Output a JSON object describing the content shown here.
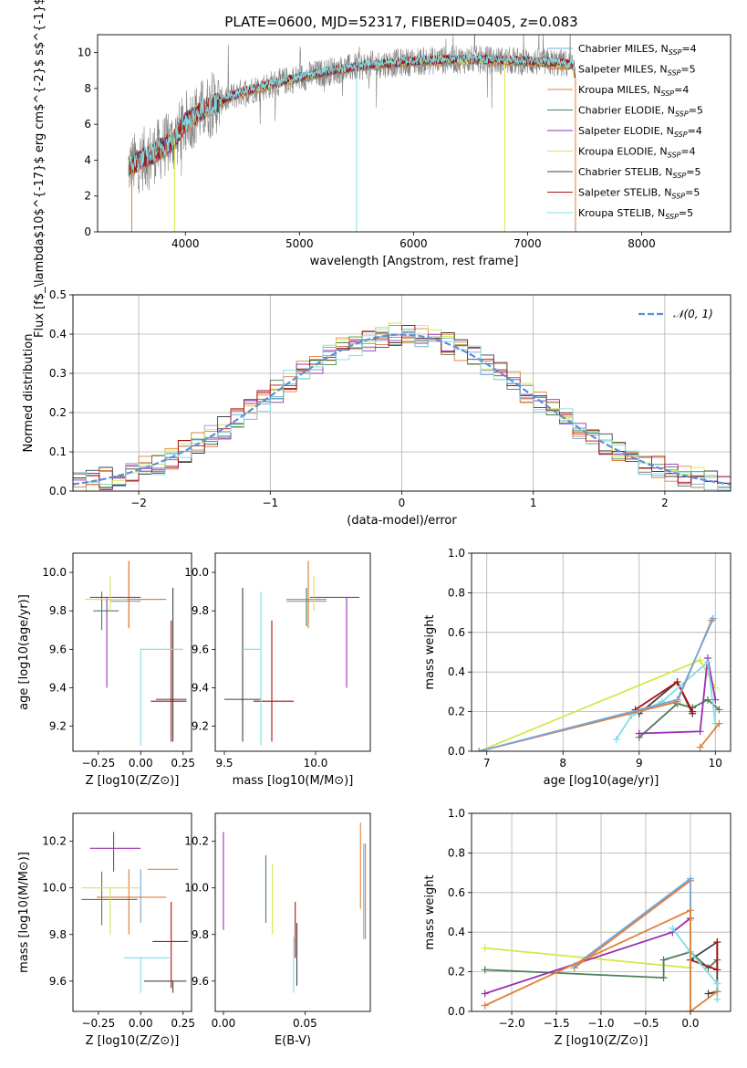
{
  "figure": {
    "title": "PLATE=0600, MJD=52317, FIBERID=0405, z=0.083"
  },
  "colors": {
    "Chabrier MILES": "#6fa8dc",
    "Salpeter MILES": "#e07b39",
    "Kroupa MILES": "#e0823a",
    "Chabrier ELODIE": "#4d7f58",
    "Salpeter ELODIE": "#9a2fb0",
    "Kroupa ELODIE": "#d4e84a",
    "Chabrier STELIB": "#404040",
    "Salpeter STELIB": "#b01010",
    "Kroupa STELIB": "#7fdde6",
    "data": "#808080",
    "normal": "#5b8fd9"
  },
  "chart_data": [
    {
      "id": "spectrum",
      "type": "line",
      "xlabel": "wavelength [Angstrom, rest frame]",
      "ylabel": "Flux [f$_\\lambda$10$^{-17}$ erg cm$^{-2}$ s$^{-1}$ A$^{-1}$]",
      "xlim": [
        3230,
        8780
      ],
      "ylim": [
        0,
        11
      ],
      "xticks": [
        4000,
        5000,
        6000,
        7000,
        8000
      ],
      "yticks": [
        0,
        2,
        4,
        6,
        8,
        10
      ],
      "legend_position": "top-right",
      "series": [
        {
          "name": "Chabrier MILES, N_SSP=4",
          "label_main": "Chabrier MILES, N",
          "label_sub": "SSP",
          "label_tail": "=4"
        },
        {
          "name": "Salpeter MILES, N_SSP=5",
          "label_main": "Salpeter MILES, N",
          "label_sub": "SSP",
          "label_tail": "=5"
        },
        {
          "name": "Kroupa MILES, N_SSP=4",
          "label_main": "Kroupa MILES, N",
          "label_sub": "SSP",
          "label_tail": "=4"
        },
        {
          "name": "Chabrier ELODIE, N_SSP=5",
          "label_main": "Chabrier ELODIE, N",
          "label_sub": "SSP",
          "label_tail": "=5"
        },
        {
          "name": "Salpeter ELODIE, N_SSP=4",
          "label_main": "Salpeter ELODIE, N",
          "label_sub": "SSP",
          "label_tail": "=4"
        },
        {
          "name": "Kroupa ELODIE, N_SSP=4",
          "label_main": "Kroupa ELODIE, N",
          "label_sub": "SSP",
          "label_tail": "=4"
        },
        {
          "name": "Chabrier STELIB, N_SSP=5",
          "label_main": "Chabrier STELIB, N",
          "label_sub": "SSP",
          "label_tail": "=5"
        },
        {
          "name": "Salpeter STELIB, N_SSP=5",
          "label_main": "Salpeter STELIB, N",
          "label_sub": "SSP",
          "label_tail": "=5"
        },
        {
          "name": "Kroupa STELIB, N_SSP=5",
          "label_main": "Kroupa STELIB, N",
          "label_sub": "SSP",
          "label_tail": "=5"
        }
      ],
      "continuum": {
        "x": [
          3500,
          3700,
          3900,
          4000,
          4200,
          4500,
          4800,
          5000,
          5300,
          5600,
          6000,
          6300,
          6600,
          7000,
          7300,
          7400,
          7420
        ],
        "y": [
          3.6,
          4.3,
          5.1,
          6.1,
          7.0,
          7.8,
          8.3,
          8.6,
          9.0,
          9.3,
          9.5,
          9.6,
          9.6,
          9.5,
          9.4,
          9.3,
          8.5
        ]
      }
    },
    {
      "id": "residuals",
      "type": "line",
      "xlabel": "(data-model)/error",
      "ylabel": "Normed distribution",
      "xlim": [
        -2.5,
        2.5
      ],
      "ylim": [
        0,
        0.5
      ],
      "xticks": [
        -2,
        -1,
        0,
        1,
        2
      ],
      "yticks": [
        0.0,
        0.1,
        0.2,
        0.3,
        0.4,
        0.5
      ],
      "grid": true,
      "legend_position": "top-right",
      "normal_label": "𝒩(0, 1)"
    },
    {
      "id": "age_vs_Z",
      "type": "scatter",
      "xlabel": "Z [log10(Z/Z⊙)]",
      "ylabel": "age  [log10(age/yr)]",
      "xlim": [
        -0.4,
        0.3
      ],
      "ylim": [
        9.07,
        10.1
      ],
      "xticks": [
        -0.25,
        0.0,
        0.25
      ],
      "yticks": [
        9.2,
        9.4,
        9.6,
        9.8,
        10.0
      ],
      "points": [
        {
          "series": "Chabrier MILES",
          "x": 0.0,
          "y": 9.85,
          "xerr": [
            0.18,
            0.0
          ],
          "yerr": [
            0.0,
            0.0
          ]
        },
        {
          "series": "Salpeter MILES",
          "x": -0.07,
          "y": 9.86,
          "xerr": [
            0.19,
            0.22
          ],
          "yerr": [
            0.15,
            0.2
          ]
        },
        {
          "series": "Kroupa MILES",
          "x": -0.07,
          "y": 9.86,
          "xerr": [
            0.19,
            0.22
          ],
          "yerr": [
            0.15,
            0.2
          ]
        },
        {
          "series": "Chabrier ELODIE",
          "x": -0.23,
          "y": 9.8,
          "xerr": [
            0.05,
            0.1
          ],
          "yerr": [
            0.1,
            0.1
          ]
        },
        {
          "series": "Salpeter ELODIE",
          "x": -0.2,
          "y": 9.87,
          "xerr": [
            0.1,
            0.2
          ],
          "yerr": [
            0.47,
            0.0
          ]
        },
        {
          "series": "Kroupa ELODIE",
          "x": -0.18,
          "y": 9.86,
          "xerr": [
            0.15,
            0.1
          ],
          "yerr": [
            0.06,
            0.12
          ]
        },
        {
          "series": "Chabrier STELIB",
          "x": 0.19,
          "y": 9.34,
          "xerr": [
            0.1,
            0.08
          ],
          "yerr": [
            0.22,
            0.58
          ]
        },
        {
          "series": "Salpeter STELIB",
          "x": 0.18,
          "y": 9.33,
          "xerr": [
            0.12,
            0.09
          ],
          "yerr": [
            0.21,
            0.42
          ]
        },
        {
          "series": "Kroupa STELIB",
          "x": 0.0,
          "y": 9.6,
          "xerr": [
            0.0,
            0.25
          ],
          "yerr": [
            0.5,
            0.0
          ]
        }
      ]
    },
    {
      "id": "age_vs_mass",
      "type": "scatter",
      "xlabel": "mass [log10(M/M⊙)]",
      "ylabel": "",
      "xlim": [
        9.45,
        10.3
      ],
      "ylim": [
        9.07,
        10.1
      ],
      "xticks": [
        9.5,
        10.0
      ],
      "yticks": [
        9.2,
        9.4,
        9.6,
        9.8,
        10.0
      ],
      "points": [
        {
          "series": "Chabrier MILES",
          "x": 9.96,
          "y": 9.85,
          "xerr": [
            0.12,
            0.1
          ],
          "yerr": [
            0.0,
            0.0
          ]
        },
        {
          "series": "Salpeter MILES",
          "x": 9.96,
          "y": 9.86,
          "xerr": [
            0.12,
            0.1
          ],
          "yerr": [
            0.15,
            0.2
          ]
        },
        {
          "series": "Kroupa MILES",
          "x": 9.96,
          "y": 9.86,
          "xerr": [
            0.12,
            0.1
          ],
          "yerr": [
            0.15,
            0.2
          ]
        },
        {
          "series": "Chabrier ELODIE",
          "x": 9.95,
          "y": 9.82,
          "xerr": [
            0.0,
            0.0
          ],
          "yerr": [
            0.1,
            0.1
          ]
        },
        {
          "series": "Salpeter ELODIE",
          "x": 10.17,
          "y": 9.87,
          "xerr": [
            0.2,
            0.07
          ],
          "yerr": [
            0.47,
            0.0
          ]
        },
        {
          "series": "Kroupa ELODIE",
          "x": 9.99,
          "y": 9.86,
          "xerr": [
            0.0,
            0.0
          ],
          "yerr": [
            0.06,
            0.12
          ]
        },
        {
          "series": "Chabrier STELIB",
          "x": 9.6,
          "y": 9.34,
          "xerr": [
            0.1,
            0.1
          ],
          "yerr": [
            0.22,
            0.58
          ]
        },
        {
          "series": "Salpeter STELIB",
          "x": 9.76,
          "y": 9.33,
          "xerr": [
            0.1,
            0.12
          ],
          "yerr": [
            0.21,
            0.42
          ]
        },
        {
          "series": "Kroupa STELIB",
          "x": 9.7,
          "y": 9.6,
          "xerr": [
            0.1,
            0.0
          ],
          "yerr": [
            0.5,
            0.3
          ]
        }
      ]
    },
    {
      "id": "mass_weight_vs_age",
      "type": "line",
      "xlabel": "age  [log10(age/yr)]",
      "ylabel": "mass weight",
      "xlim": [
        6.8,
        10.2
      ],
      "ylim": [
        0,
        1
      ],
      "xticks": [
        7,
        8,
        9,
        10
      ],
      "yticks": [
        0.0,
        0.2,
        0.4,
        0.6,
        0.8,
        1.0
      ],
      "grid": true,
      "series": [
        {
          "series": "Kroupa ELODIE",
          "x": [
            6.9,
            9.8,
            10.0
          ],
          "y": [
            0.0,
            0.46,
            0.32
          ]
        },
        {
          "series": "Chabrier ELODIE",
          "x": [
            9.0,
            9.5,
            9.7,
            9.9,
            10.05
          ],
          "y": [
            0.07,
            0.24,
            0.22,
            0.26,
            0.21
          ]
        },
        {
          "series": "Chabrier STELIB",
          "x": [
            9.0,
            9.5,
            9.7
          ],
          "y": [
            0.19,
            0.35,
            0.19
          ]
        },
        {
          "series": "Salpeter STELIB",
          "x": [
            8.95,
            9.5,
            9.7
          ],
          "y": [
            0.21,
            0.35,
            0.2
          ]
        },
        {
          "series": "Salpeter ELODIE",
          "x": [
            9.0,
            9.8,
            9.9,
            10.0
          ],
          "y": [
            0.09,
            0.1,
            0.47,
            0.26
          ]
        },
        {
          "series": "Kroupa STELIB",
          "x": [
            8.7,
            8.9,
            9.3,
            9.9,
            10.0
          ],
          "y": [
            0.06,
            0.18,
            0.25,
            0.45,
            0.14
          ]
        },
        {
          "series": "Salpeter MILES",
          "x": [
            6.9,
            9.5,
            9.95
          ],
          "y": [
            0.0,
            0.25,
            0.66
          ]
        },
        {
          "series": "Chabrier MILES",
          "x": [
            6.9,
            9.5,
            9.97
          ],
          "y": [
            0.0,
            0.26,
            0.67
          ]
        },
        {
          "series": "Kroupa MILES",
          "x": [
            9.8,
            10.05
          ],
          "y": [
            0.02,
            0.14
          ]
        }
      ]
    },
    {
      "id": "mass_vs_Z",
      "type": "scatter",
      "xlabel": "Z [log10(Z/Z⊙)]",
      "ylabel": "mass [log10(M/M⊙)]",
      "xlim": [
        -0.4,
        0.3
      ],
      "ylim": [
        9.47,
        10.32
      ],
      "xticks": [
        -0.25,
        0.0,
        0.25
      ],
      "yticks": [
        9.6,
        9.8,
        10.0,
        10.2
      ],
      "points": [
        {
          "series": "Chabrier MILES",
          "x": 0.0,
          "y": 9.96,
          "xerr": [
            0.0,
            0.0
          ],
          "yerr": [
            0.11,
            0.12
          ]
        },
        {
          "series": "Salpeter MILES",
          "x": -0.07,
          "y": 9.96,
          "xerr": [
            0.19,
            0.22
          ],
          "yerr": [
            0.16,
            0.12
          ]
        },
        {
          "series": "Kroupa MILES",
          "x": 0.04,
          "y": 10.08,
          "xerr": [
            0.0,
            0.18
          ],
          "yerr": [
            0.0,
            0.0
          ]
        },
        {
          "series": "Chabrier ELODIE",
          "x": -0.23,
          "y": 9.95,
          "xerr": [
            0.12,
            0.21
          ],
          "yerr": [
            0.11,
            0.12
          ]
        },
        {
          "series": "Salpeter ELODIE",
          "x": -0.16,
          "y": 10.17,
          "xerr": [
            0.14,
            0.16
          ],
          "yerr": [
            0.1,
            0.07
          ]
        },
        {
          "series": "Kroupa ELODIE",
          "x": -0.18,
          "y": 10.0,
          "xerr": [
            0.17,
            0.17
          ],
          "yerr": [
            0.2,
            0.0
          ]
        },
        {
          "series": "Chabrier STELIB",
          "x": 0.19,
          "y": 9.6,
          "xerr": [
            0.17,
            0.08
          ],
          "yerr": [
            0.05,
            0.0
          ]
        },
        {
          "series": "Salpeter STELIB",
          "x": 0.18,
          "y": 9.77,
          "xerr": [
            0.11,
            0.1
          ],
          "yerr": [
            0.2,
            0.17
          ]
        },
        {
          "series": "Kroupa STELIB",
          "x": 0.0,
          "y": 9.7,
          "xerr": [
            0.1,
            0.17
          ],
          "yerr": [
            0.15,
            0.0
          ]
        }
      ]
    },
    {
      "id": "mass_vs_EBV",
      "type": "scatter",
      "xlabel": "E(B-V)",
      "ylabel": "",
      "xlim": [
        -0.005,
        0.09
      ],
      "ylim": [
        9.47,
        10.32
      ],
      "xticks": [
        0.0,
        0.05
      ],
      "yticks": [
        9.6,
        9.8,
        10.0,
        10.2
      ],
      "points": [
        {
          "series": "Salpeter ELODIE",
          "x": 0.0,
          "y": 10.03,
          "xerr": [
            0.0,
            0.0
          ],
          "yerr": [
            0.21,
            0.21
          ]
        },
        {
          "series": "Chabrier ELODIE",
          "x": 0.026,
          "y": 9.99,
          "xerr": [
            0.0,
            0.0
          ],
          "yerr": [
            0.14,
            0.15
          ]
        },
        {
          "series": "Kroupa ELODIE",
          "x": 0.03,
          "y": 9.96,
          "xerr": [
            0.0,
            0.0
          ],
          "yerr": [
            0.16,
            0.14
          ]
        },
        {
          "series": "Salpeter STELIB",
          "x": 0.044,
          "y": 9.81,
          "xerr": [
            0.0,
            0.0
          ],
          "yerr": [
            0.11,
            0.13
          ]
        },
        {
          "series": "Chabrier STELIB",
          "x": 0.045,
          "y": 9.7,
          "xerr": [
            0.0,
            0.0
          ],
          "yerr": [
            0.12,
            0.15
          ]
        },
        {
          "series": "Kroupa STELIB",
          "x": 0.043,
          "y": 9.69,
          "xerr": [
            0.0,
            0.0
          ],
          "yerr": [
            0.14,
            0.1
          ]
        },
        {
          "series": "Kroupa MILES",
          "x": 0.084,
          "y": 10.1,
          "xerr": [
            0.0,
            0.0
          ],
          "yerr": [
            0.19,
            0.18
          ]
        },
        {
          "series": "Salpeter MILES",
          "x": 0.087,
          "y": 9.98,
          "xerr": [
            0.0,
            0.0
          ],
          "yerr": [
            0.2,
            0.21
          ]
        },
        {
          "series": "Chabrier MILES",
          "x": 0.086,
          "y": 9.97,
          "xerr": [
            0.0,
            0.0
          ],
          "yerr": [
            0.19,
            0.22
          ]
        }
      ]
    },
    {
      "id": "mass_weight_vs_Z",
      "type": "line",
      "xlabel": "Z [log10(Z/Z⊙)]",
      "ylabel": "mass weight",
      "xlim": [
        -2.45,
        0.45
      ],
      "ylim": [
        0,
        1
      ],
      "xticks": [
        -2.0,
        -1.5,
        -1.0,
        -0.5,
        0.0
      ],
      "yticks": [
        0.0,
        0.2,
        0.4,
        0.6,
        0.8,
        1.0
      ],
      "grid": true,
      "series": [
        {
          "series": "Kroupa ELODIE",
          "x": [
            -2.3,
            0.0,
            0.0
          ],
          "y": [
            0.32,
            0.22,
            0.46
          ]
        },
        {
          "series": "Chabrier ELODIE",
          "x": [
            -2.3,
            -0.3,
            -0.3,
            0.0,
            0.2,
            0.3
          ],
          "y": [
            0.21,
            0.17,
            0.26,
            0.3,
            0.22,
            0.26
          ]
        },
        {
          "series": "Salpeter ELODIE",
          "x": [
            -2.3,
            -0.2,
            0.0
          ],
          "y": [
            0.09,
            0.4,
            0.47
          ]
        },
        {
          "series": "Chabrier STELIB",
          "x": [
            0.0,
            0.3,
            0.3,
            0.2
          ],
          "y": [
            0.26,
            0.35,
            0.1,
            0.09
          ]
        },
        {
          "series": "Salpeter STELIB",
          "x": [
            0.0,
            0.3,
            0.3
          ],
          "y": [
            0.26,
            0.21,
            0.35
          ]
        },
        {
          "series": "Kroupa STELIB",
          "x": [
            -0.2,
            0.0,
            0.3,
            0.3
          ],
          "y": [
            0.42,
            0.3,
            0.14,
            0.06
          ]
        },
        {
          "series": "Salpeter MILES",
          "x": [
            -1.3,
            0.0,
            0.0
          ],
          "y": [
            0.22,
            0.66,
            0.0
          ]
        },
        {
          "series": "Chabrier MILES",
          "x": [
            -1.3,
            0.0,
            0.0
          ],
          "y": [
            0.23,
            0.67,
            0.0
          ]
        },
        {
          "series": "Kroupa MILES",
          "x": [
            -2.3,
            0.0,
            0.0,
            0.3
          ],
          "y": [
            0.03,
            0.51,
            0.0,
            0.1
          ]
        }
      ]
    }
  ]
}
